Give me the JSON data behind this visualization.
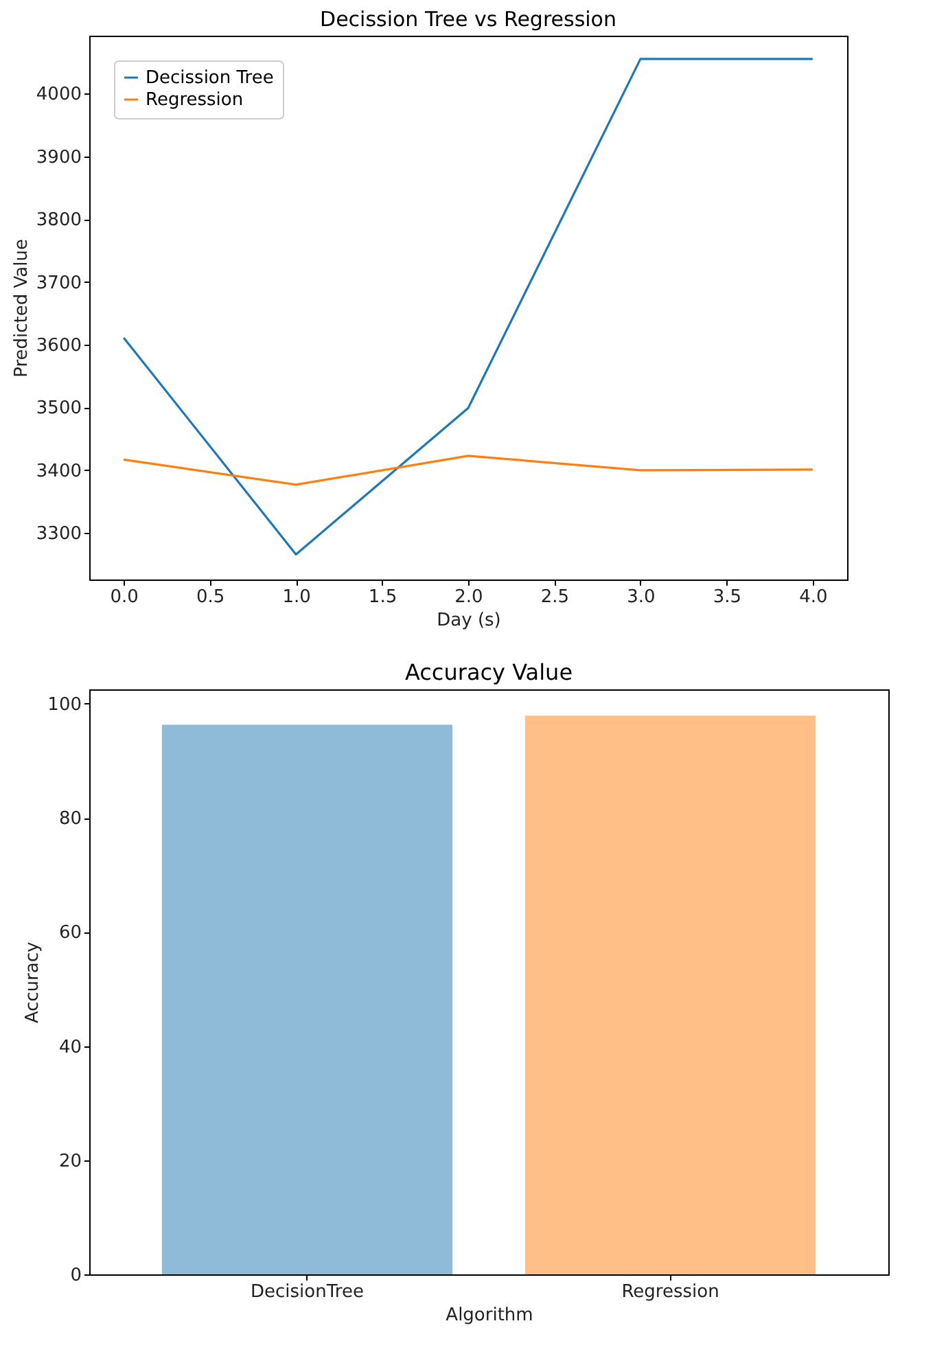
{
  "chart_data": [
    {
      "type": "line",
      "title": "Decission Tree vs Regression",
      "xlabel": "Day (s)",
      "ylabel": "Predicted Value",
      "x": [
        0,
        1,
        2,
        3,
        4
      ],
      "series": [
        {
          "name": "Decission Tree",
          "color": "#1f77b4",
          "values": [
            3611,
            3266,
            3499,
            4055,
            4055
          ]
        },
        {
          "name": "Regression",
          "color": "#ff7f0e",
          "values": [
            3417,
            3377,
            3423,
            3400,
            3401
          ]
        }
      ],
      "xlim": [
        -0.2,
        4.2
      ],
      "xticks": [
        {
          "value": 0,
          "label": "0.0"
        },
        {
          "value": 0.5,
          "label": "0.5"
        },
        {
          "value": 1,
          "label": "1.0"
        },
        {
          "value": 1.5,
          "label": "1.5"
        },
        {
          "value": 2,
          "label": "2.0"
        },
        {
          "value": 2.5,
          "label": "2.5"
        },
        {
          "value": 3,
          "label": "3.0"
        },
        {
          "value": 3.5,
          "label": "3.5"
        },
        {
          "value": 4,
          "label": "4.0"
        }
      ],
      "ylim": [
        3226,
        4092
      ],
      "yticks": [
        3300,
        3400,
        3500,
        3600,
        3700,
        3800,
        3900,
        4000
      ],
      "grid": false,
      "legend": "top left",
      "marker": "none",
      "line_style": "solid"
    },
    {
      "type": "bar",
      "title": "Accuracy Value",
      "xlabel": "Algorithm",
      "ylabel": "Accuracy",
      "categories": [
        "DecisionTree",
        "Regression"
      ],
      "values": [
        96.3,
        97.9
      ],
      "colors": [
        "#8fbbd9",
        "#ffbf86"
      ],
      "ylim": [
        0,
        102.5
      ],
      "yticks": [
        0,
        20,
        40,
        60,
        80,
        100
      ],
      "grid": false
    }
  ]
}
